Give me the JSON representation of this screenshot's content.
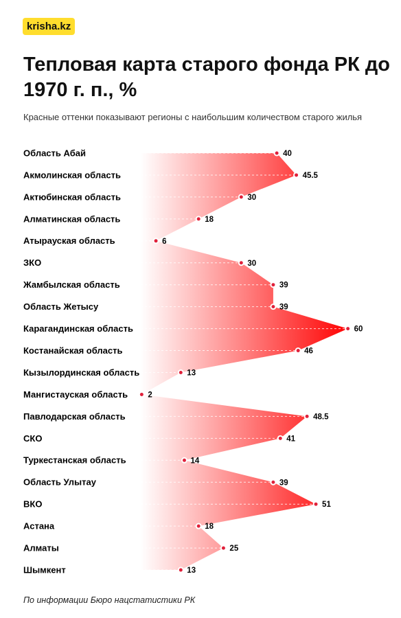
{
  "logo": "krisha.kz",
  "chart_data": {
    "type": "area",
    "title": "Тепловая карта старого фонда РК до 1970 г. п., %",
    "subtitle": "Красные оттенки показывают регионы с наибольшим количеством старого жилья",
    "categories": [
      "Область Абай",
      "Акмолинская область",
      "Актюбинская область",
      "Алматинская область",
      "Атырауская область",
      "ЗКО",
      "Жамбылская область",
      "Область Жетысу",
      "Карагандинская область",
      "Костанайская область",
      "Кызылординская область",
      "Мангистауская область",
      "Павлодарская область",
      "СКО",
      "Туркестанская область",
      "Область Улытау",
      "ВКО",
      "Астана",
      "Алматы",
      "Шымкент"
    ],
    "values": [
      40,
      45.5,
      30,
      18,
      6,
      30,
      39,
      39,
      60,
      46,
      13,
      2,
      48.5,
      41,
      14,
      39,
      51,
      18,
      25,
      13
    ],
    "color": "#ff0000",
    "xlim": [
      0,
      62
    ],
    "source": "По информации Бюро нацстатистики РК"
  }
}
